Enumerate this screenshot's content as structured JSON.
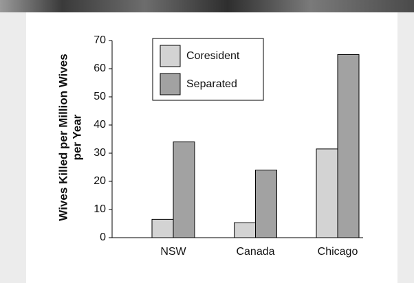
{
  "chart_data": {
    "type": "bar",
    "y_label": [
      "Wives Killed per Million Wives",
      "per Year"
    ],
    "categories": [
      "NSW",
      "Canada",
      "Chicago"
    ],
    "series": [
      {
        "name": "Coresident",
        "color": "#d3d3d3",
        "values": [
          6.5,
          5.3,
          31.5
        ]
      },
      {
        "name": "Separated",
        "color": "#a2a2a2",
        "values": [
          34,
          24,
          65
        ]
      }
    ],
    "ylim": [
      0,
      70
    ],
    "yticks": [
      0,
      10,
      20,
      30,
      40,
      50,
      60,
      70
    ],
    "grid": false,
    "legend": "top-left"
  }
}
